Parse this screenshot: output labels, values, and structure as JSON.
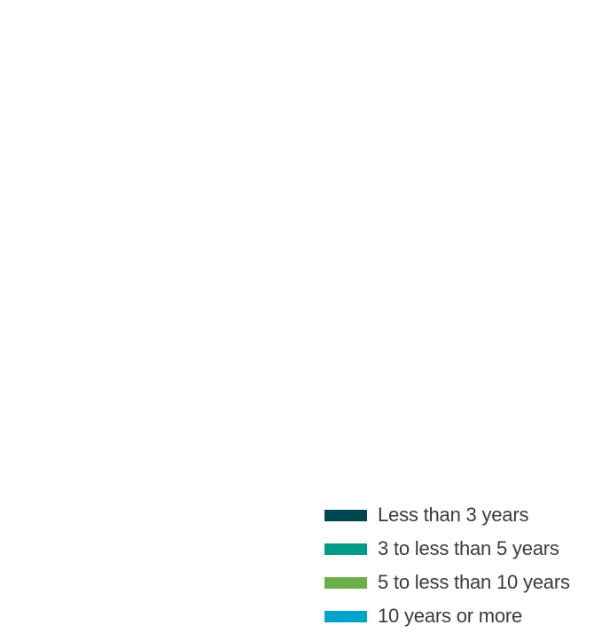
{
  "chart_data": {
    "type": "bar",
    "title": "",
    "categories": [],
    "series": [
      {
        "name": "Less than 3 years",
        "color": "#004650",
        "values": []
      },
      {
        "name": "3 to less than 5 years",
        "color": "#009b89",
        "values": []
      },
      {
        "name": "5 to less than 10 years",
        "color": "#6ab04a",
        "values": []
      },
      {
        "name": "10 years or more",
        "color": "#00a3c9",
        "values": []
      }
    ],
    "legend_position": "bottom-right"
  }
}
